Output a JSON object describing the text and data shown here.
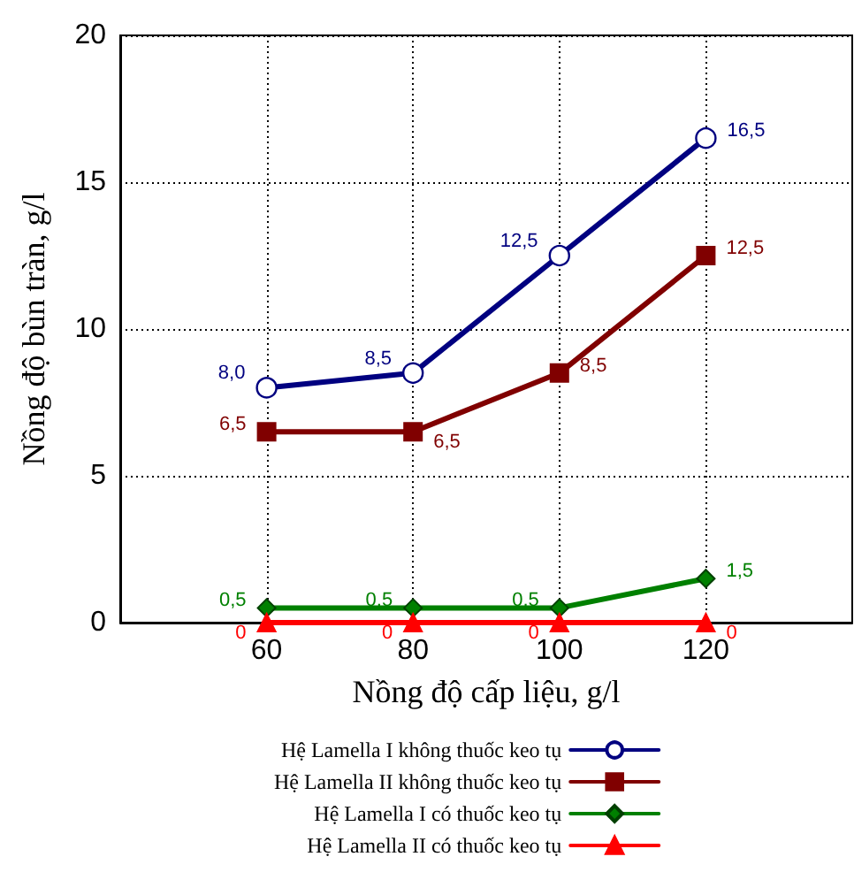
{
  "chart_data": {
    "type": "line",
    "xlabel": "Nồng độ cấp liệu, g/l",
    "ylabel": "Nồng độ bùn tràn, g/l",
    "x": [
      60,
      80,
      100,
      120
    ],
    "xlim": [
      40,
      140
    ],
    "xticks": [
      60,
      80,
      100,
      120
    ],
    "ylim": [
      0,
      20
    ],
    "yticks": [
      0,
      5,
      10,
      15,
      20
    ],
    "grid": true,
    "legend": "bottom",
    "line_style": "solid",
    "series": [
      {
        "name": "Hệ Lamella I không thuốc keo tụ",
        "color": "#000080",
        "marker": "circle",
        "values": [
          8.0,
          8.5,
          12.5,
          16.5
        ],
        "value_labels": [
          "8,0",
          "8,5",
          "12,5",
          "16,5"
        ]
      },
      {
        "name": "Hệ Lamella II không thuốc keo tụ",
        "color": "#800000",
        "marker": "square",
        "values": [
          6.5,
          6.5,
          8.5,
          12.5
        ],
        "value_labels": [
          "6,5",
          "6,5",
          "8,5",
          "12,5"
        ]
      },
      {
        "name": "Hệ Lamella I có thuốc keo tụ",
        "color": "#008000",
        "marker": "diamond",
        "values": [
          0.5,
          0.5,
          0.5,
          1.5
        ],
        "value_labels": [
          "0,5",
          "0,5",
          "0,5",
          "1,5"
        ]
      },
      {
        "name": "Hệ Lamella II có thuốc keo tụ",
        "color": "#ff0000",
        "marker": "triangle",
        "values": [
          0,
          0,
          0,
          0
        ],
        "value_labels": [
          "0",
          "0",
          "0",
          "0"
        ]
      }
    ]
  }
}
